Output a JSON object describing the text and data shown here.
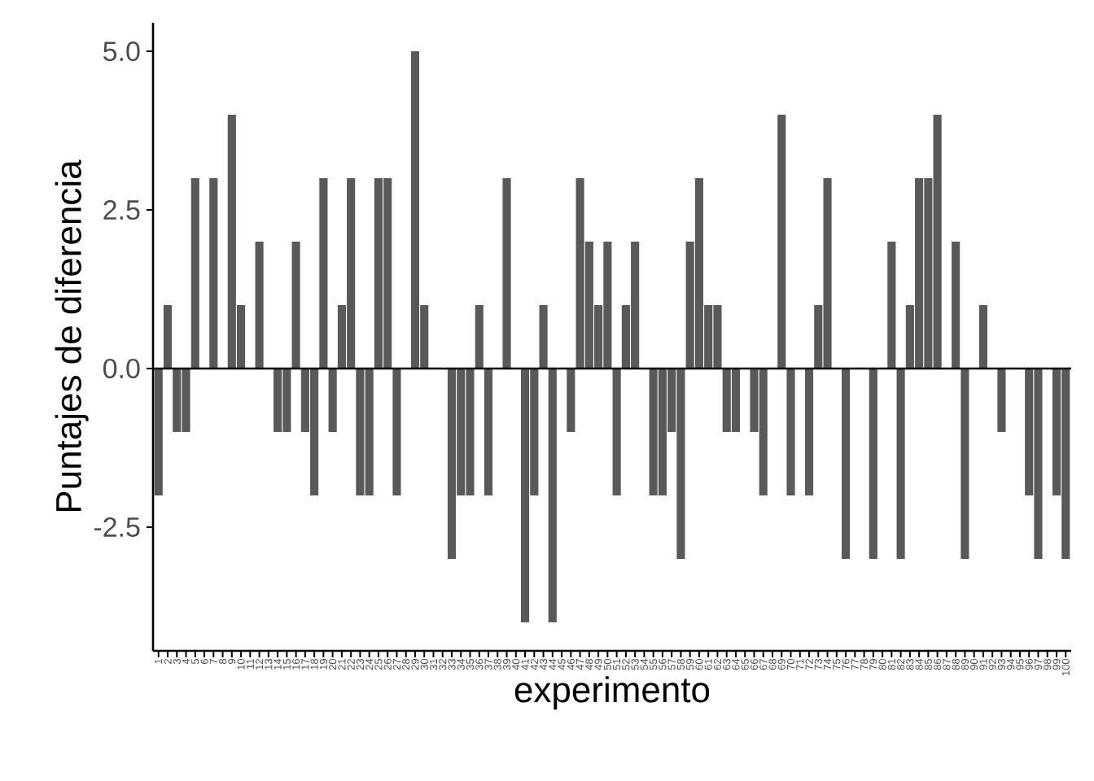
{
  "chart_data": {
    "type": "bar",
    "xlabel": "experimento",
    "ylabel": "Puntajes de diferencia",
    "categories": [
      "1",
      "2",
      "3",
      "4",
      "5",
      "6",
      "7",
      "8",
      "9",
      "10",
      "11",
      "12",
      "13",
      "14",
      "15",
      "16",
      "17",
      "18",
      "19",
      "20",
      "21",
      "22",
      "23",
      "24",
      "25",
      "26",
      "27",
      "28",
      "29",
      "30",
      "31",
      "32",
      "33",
      "34",
      "35",
      "36",
      "37",
      "38",
      "39",
      "40",
      "41",
      "42",
      "43",
      "44",
      "45",
      "46",
      "47",
      "48",
      "49",
      "50",
      "51",
      "52",
      "53",
      "54",
      "55",
      "56",
      "57",
      "58",
      "59",
      "60",
      "61",
      "62",
      "63",
      "64",
      "65",
      "66",
      "67",
      "68",
      "69",
      "70",
      "71",
      "72",
      "73",
      "74",
      "75",
      "76",
      "77",
      "78",
      "79",
      "80",
      "81",
      "82",
      "83",
      "84",
      "85",
      "86",
      "87",
      "88",
      "89",
      "90",
      "91",
      "92",
      "93",
      "94",
      "95",
      "96",
      "97",
      "98",
      "99",
      "100"
    ],
    "values": [
      -2,
      1,
      -1,
      -1,
      3,
      0,
      3,
      0,
      4,
      1,
      0,
      2,
      0,
      -1,
      -1,
      2,
      -1,
      -2,
      3,
      -1,
      1,
      3,
      -2,
      -2,
      3,
      3,
      -2,
      0,
      5,
      1,
      0,
      0,
      -3,
      -2,
      -2,
      1,
      -2,
      0,
      3,
      0,
      -4,
      -2,
      1,
      -4,
      0,
      -1,
      3,
      2,
      1,
      2,
      -2,
      1,
      2,
      0,
      -2,
      -2,
      -1,
      -3,
      2,
      3,
      1,
      1,
      -1,
      -1,
      0,
      -1,
      -2,
      0,
      4,
      -2,
      0,
      -2,
      1,
      3,
      0,
      -3,
      0,
      0,
      -3,
      0,
      2,
      -3,
      1,
      3,
      3,
      4,
      0,
      2,
      -3,
      0,
      1,
      0,
      -1,
      0,
      0,
      -2,
      -3,
      0,
      -2,
      -3
    ],
    "color": "#595959",
    "ylim": [
      -4.45,
      5.45
    ],
    "yticks": [
      -2.5,
      {
        "value": 0,
        "label": "0.0"
      },
      2.5,
      {
        "value": 5,
        "label": "5.0"
      }
    ],
    "ref_lines": [
      {
        "axis": "y",
        "value": 0,
        "color": "#000000"
      }
    ],
    "grid": false
  }
}
